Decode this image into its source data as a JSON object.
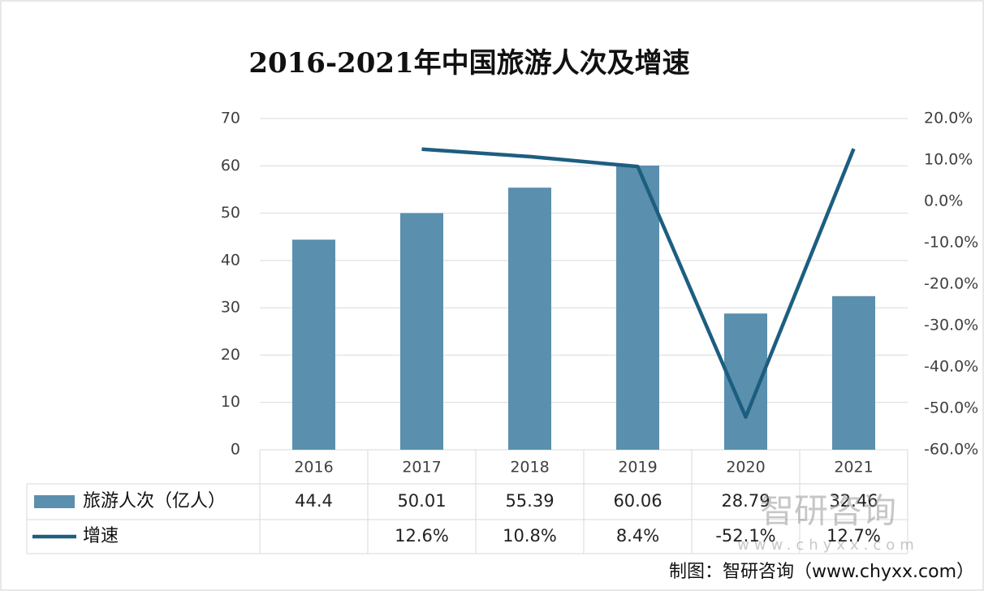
{
  "chart_data": {
    "type": "bar-line",
    "title": "2016-2021年中国旅游人次及增速",
    "categories": [
      "2016",
      "2017",
      "2018",
      "2019",
      "2020",
      "2021"
    ],
    "series": [
      {
        "name": "旅游人次（亿人）",
        "type": "bar",
        "color": "#5b8fae",
        "values": [
          44.4,
          50.01,
          55.39,
          60.06,
          28.79,
          32.46
        ]
      },
      {
        "name": "增速",
        "type": "line",
        "axis": "y2",
        "color": "#1d5e80",
        "values": [
          null,
          12.6,
          10.8,
          8.4,
          -52.1,
          12.7
        ],
        "value_labels": [
          null,
          "12.6%",
          "10.8%",
          "8.4%",
          "-52.1%",
          "12.7%"
        ]
      }
    ],
    "ylim": [
      0,
      70
    ],
    "yticks": [
      0,
      10,
      20,
      30,
      40,
      50,
      60,
      70
    ],
    "y2lim": [
      -60,
      20
    ],
    "y2ticks": [
      {
        "value": -60,
        "label": "-60.0%"
      },
      {
        "value": -50,
        "label": "-50.0%"
      },
      {
        "value": -40,
        "label": "-40.0%"
      },
      {
        "value": -30,
        "label": "-30.0%"
      },
      {
        "value": -20,
        "label": "-20.0%"
      },
      {
        "value": -10,
        "label": "-10.0%"
      },
      {
        "value": 0,
        "label": "0.0%"
      },
      {
        "value": 10,
        "label": "10.0%"
      },
      {
        "value": 20,
        "label": "20.0%"
      }
    ],
    "grid": true,
    "watermark": {
      "text": "智研咨询",
      "url": "www.chyxx.com"
    },
    "source": "制图：智研咨询（www.chyxx.com）"
  }
}
